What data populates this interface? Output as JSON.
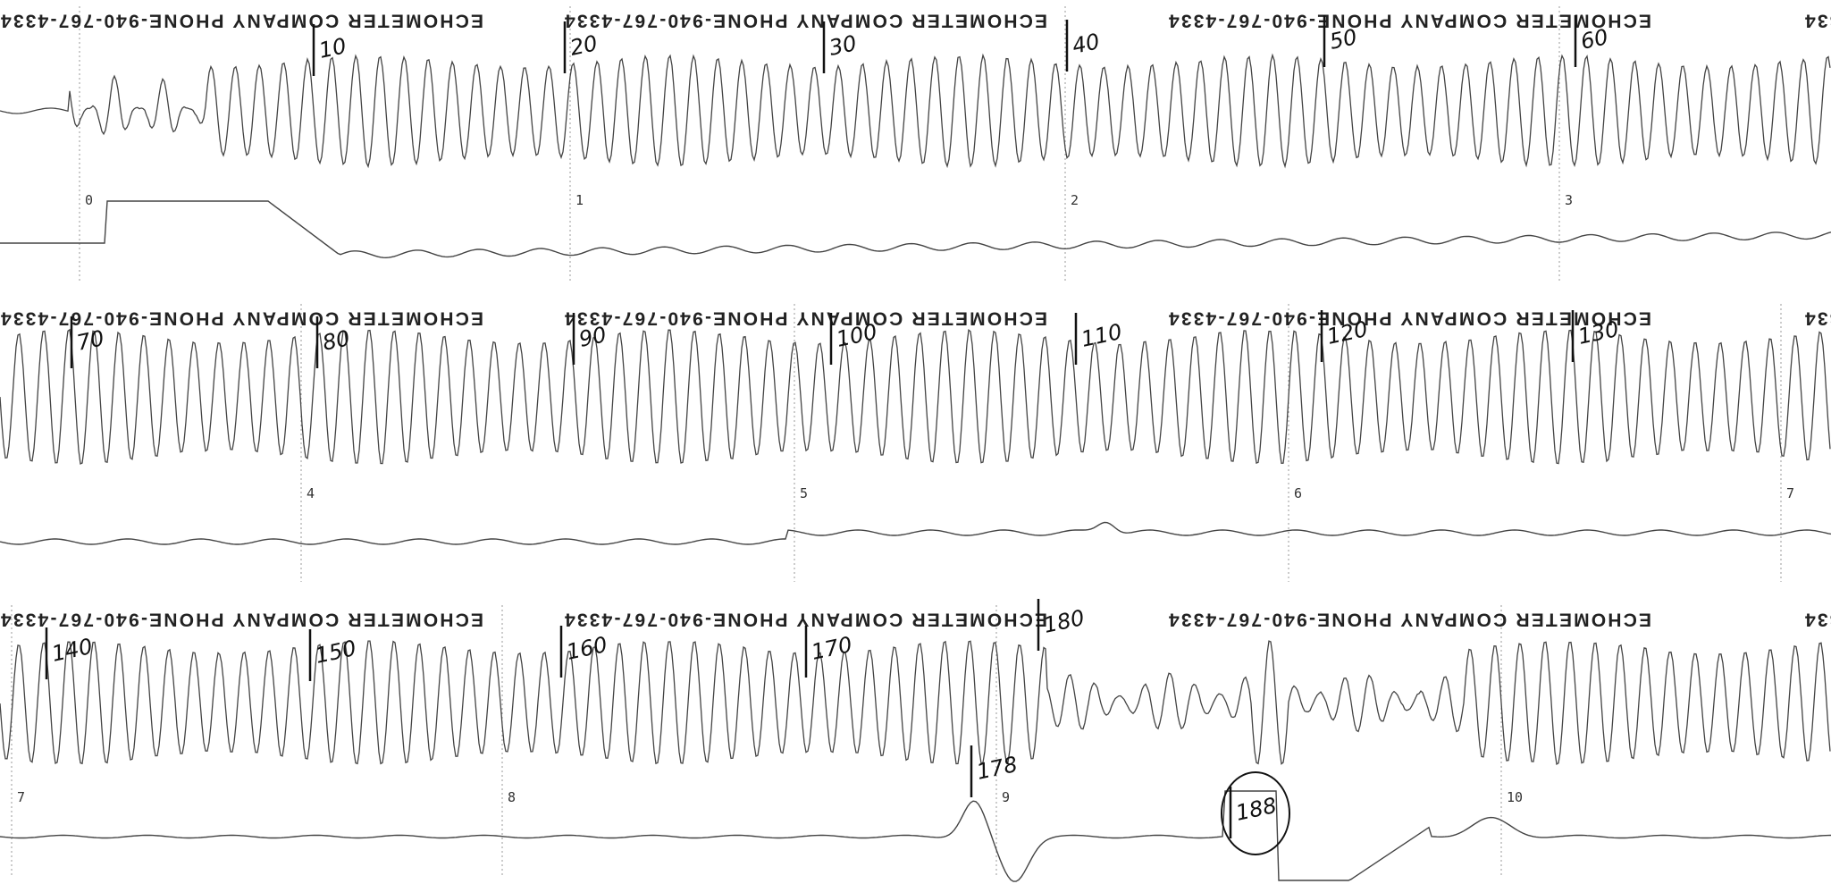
{
  "header_text": "ECHOMETER COMPANY  PHONE-940-767-4334",
  "strips": [
    {
      "annotations": [
        "10",
        "20",
        "30",
        "40",
        "50",
        "60"
      ],
      "time_marks": [
        "0",
        "1",
        "2",
        "3"
      ]
    },
    {
      "annotations": [
        "70",
        "80",
        "90",
        "100",
        "110",
        "120",
        "130"
      ],
      "time_marks": [
        "4",
        "5",
        "6",
        "7"
      ]
    },
    {
      "annotations": [
        "140",
        "150",
        "160",
        "170",
        "178",
        "180",
        "188"
      ],
      "time_marks": [
        "7",
        "8",
        "9",
        "10"
      ]
    }
  ]
}
